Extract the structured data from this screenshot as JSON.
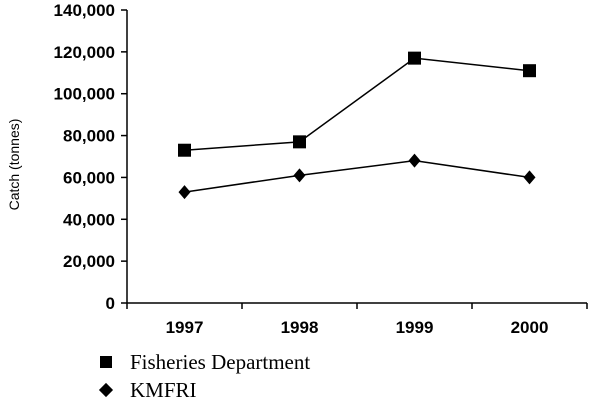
{
  "chart_data": {
    "type": "line",
    "categories": [
      "1997",
      "1998",
      "1999",
      "2000"
    ],
    "series": [
      {
        "name": "Fisheries Department",
        "values": [
          73000,
          77000,
          117000,
          111000
        ],
        "marker": "square",
        "color": "#000000"
      },
      {
        "name": "KMFRI",
        "values": [
          53000,
          61000,
          68000,
          60000
        ],
        "marker": "diamond",
        "color": "#000000"
      }
    ],
    "title": "",
    "xlabel": "",
    "ylabel": "Catch (tonnes)",
    "ylim": [
      0,
      140000
    ],
    "yticks": [
      "0",
      "20,000",
      "40,000",
      "60,000",
      "80,000",
      "100,000",
      "120,000",
      "140,000"
    ],
    "grid": false,
    "legend_position": "bottom-left"
  }
}
